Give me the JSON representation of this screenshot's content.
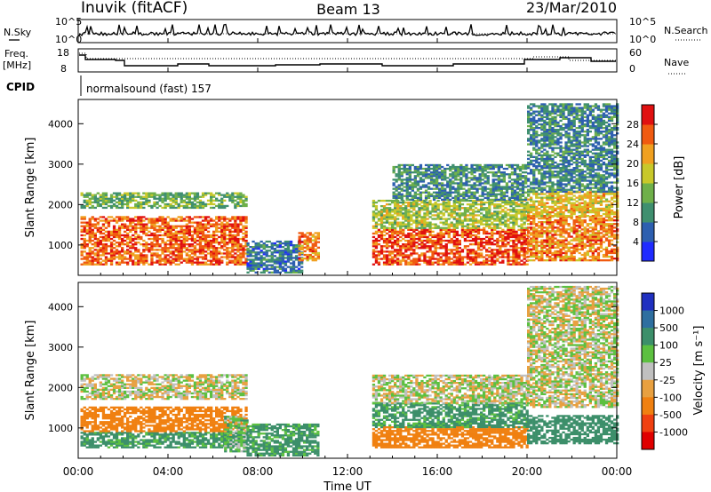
{
  "header": {
    "station": "Inuvik (fitACF)",
    "beam": "Beam 13",
    "date": "23/Mar/2010"
  },
  "summary": {
    "nsky_label": "N.Sky",
    "nsearch_label": "N.Search",
    "noise_ticks": [
      "10^5",
      "10^0"
    ],
    "freq_label_1": "Freq.",
    "freq_label_2": "[MHz]",
    "freq_ticks": [
      "18",
      "8"
    ],
    "nave_label": "Nave",
    "nave_ticks": [
      "60",
      "0"
    ],
    "cpid_label": "CPID",
    "cpid_text": "normalsound (fast) 157"
  },
  "axes": {
    "ylabel": "Slant Range [km]",
    "yticks": [
      "1000",
      "2000",
      "3000",
      "4000"
    ],
    "xlabel": "Time UT",
    "xticks": [
      "00:00",
      "04:00",
      "08:00",
      "12:00",
      "16:00",
      "20:00",
      "00:00"
    ]
  },
  "colorbars": {
    "power_label": "Power [dB]",
    "power_ticks": [
      "4",
      "8",
      "12",
      "16",
      "20",
      "24",
      "28"
    ],
    "velocity_label": "Velocity [m s⁻¹]",
    "velocity_ticks": [
      "1000",
      "500",
      "100",
      "25",
      "-25",
      "-100",
      "-500",
      "-1000"
    ]
  },
  "colors": {
    "power_scale": [
      "#1f2bff",
      "#2d5fb0",
      "#3f8f6f",
      "#6fb04a",
      "#c8c82a",
      "#f0a020",
      "#f05a10",
      "#e01010"
    ],
    "velocity_scale": [
      "#2030c0",
      "#2e6fa0",
      "#3c8f6a",
      "#5cc040",
      "#c0c0c0",
      "#e8a040",
      "#f08010",
      "#f04010",
      "#e00000"
    ]
  },
  "chart_data": [
    {
      "type": "heatmap",
      "title": "Power",
      "xlabel": "Time UT",
      "ylabel": "Slant Range [km]",
      "xlim": [
        0,
        24
      ],
      "ylim": [
        250,
        4600
      ],
      "colorbar": {
        "label": "Power [dB]",
        "range": [
          0,
          32
        ],
        "ticks": [
          4,
          8,
          12,
          16,
          20,
          24,
          28
        ]
      },
      "regions": [
        {
          "t": [
            0.1,
            7.5
          ],
          "range": [
            500,
            1700
          ],
          "power": 26
        },
        {
          "t": [
            0.1,
            7.5
          ],
          "range": [
            1900,
            2300
          ],
          "power": 13
        },
        {
          "t": [
            7.5,
            10.0
          ],
          "range": [
            300,
            1100
          ],
          "power": 8
        },
        {
          "t": [
            9.8,
            10.7
          ],
          "range": [
            600,
            1300
          ],
          "power": 24
        },
        {
          "t": [
            13.1,
            20.0
          ],
          "range": [
            500,
            1400
          ],
          "power": 27
        },
        {
          "t": [
            13.1,
            20.0
          ],
          "range": [
            1400,
            2100
          ],
          "power": 16
        },
        {
          "t": [
            14.0,
            20.0
          ],
          "range": [
            2100,
            3000
          ],
          "power": 10
        },
        {
          "t": [
            20.0,
            24.0
          ],
          "range": [
            600,
            1700
          ],
          "power": 24
        },
        {
          "t": [
            20.0,
            24.0
          ],
          "range": [
            1700,
            2300
          ],
          "power": 20
        },
        {
          "t": [
            20.0,
            24.0
          ],
          "range": [
            2300,
            4500
          ],
          "power": 9
        }
      ]
    },
    {
      "type": "heatmap",
      "title": "Velocity",
      "xlabel": "Time UT",
      "ylabel": "Slant Range [km]",
      "xlim": [
        0,
        24
      ],
      "ylim": [
        250,
        4600
      ],
      "colorbar": {
        "label": "Velocity [m s⁻¹]",
        "ticks": [
          1000,
          500,
          100,
          25,
          -25,
          -100,
          -500,
          -1000
        ]
      },
      "regions": [
        {
          "t": [
            0.1,
            7.5
          ],
          "range": [
            500,
            900
          ],
          "velocity": 150
        },
        {
          "t": [
            0.1,
            7.5
          ],
          "range": [
            900,
            1500
          ],
          "velocity": -300
        },
        {
          "t": [
            0.1,
            7.5
          ],
          "range": [
            1700,
            2300
          ],
          "velocity": 0
        },
        {
          "t": [
            6.5,
            7.5
          ],
          "range": [
            400,
            1300
          ],
          "velocity": 60
        },
        {
          "t": [
            7.5,
            10.7
          ],
          "range": [
            300,
            1100
          ],
          "velocity": 150
        },
        {
          "t": [
            13.1,
            20.0
          ],
          "range": [
            500,
            1000
          ],
          "velocity": -300
        },
        {
          "t": [
            13.1,
            20.0
          ],
          "range": [
            1000,
            1600
          ],
          "velocity": 150
        },
        {
          "t": [
            13.1,
            20.0
          ],
          "range": [
            1600,
            2300
          ],
          "velocity": 0
        },
        {
          "t": [
            20.0,
            24.0
          ],
          "range": [
            600,
            1300
          ],
          "velocity": 200
        },
        {
          "t": [
            20.0,
            24.0
          ],
          "range": [
            1500,
            2400
          ],
          "velocity": 0
        },
        {
          "t": [
            20.0,
            24.0
          ],
          "range": [
            2400,
            4500
          ],
          "velocity": 0
        }
      ]
    }
  ]
}
